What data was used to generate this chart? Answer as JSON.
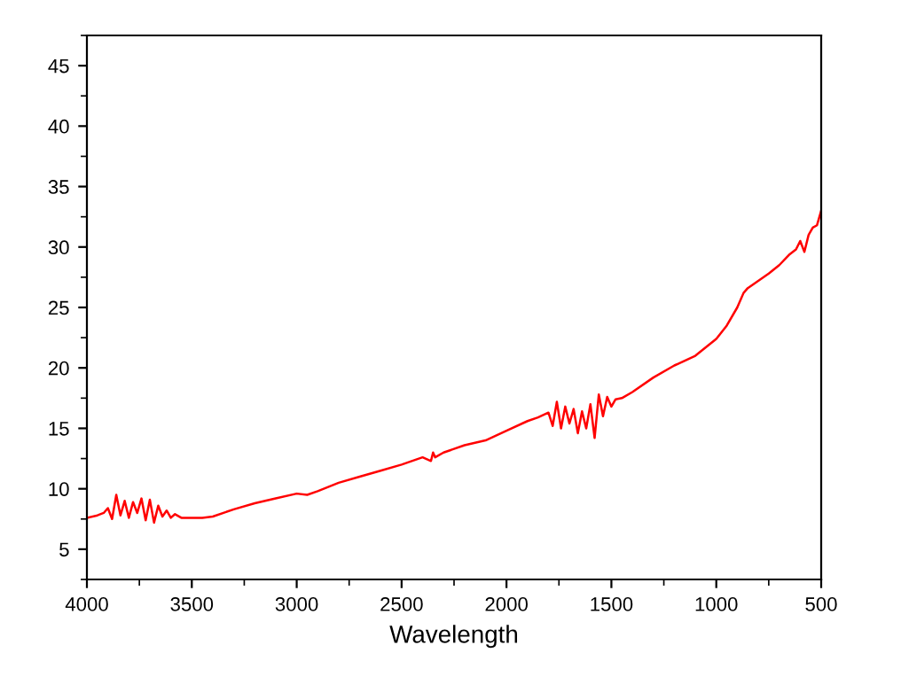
{
  "chart_data": {
    "type": "line",
    "xlabel": "Wavelength",
    "xlim": [
      4000,
      500
    ],
    "ylim": [
      2.5,
      47.5
    ],
    "xticks": [
      4000,
      3500,
      3000,
      2500,
      2000,
      1500,
      1000,
      500
    ],
    "yticks": [
      5,
      10,
      15,
      20,
      25,
      30,
      35,
      40,
      45
    ],
    "grid": false,
    "legend": false,
    "marker": "none",
    "line_style": "solid",
    "series": [
      {
        "color": "#ff0000",
        "x": [
          4000,
          3950,
          3920,
          3900,
          3880,
          3860,
          3840,
          3820,
          3800,
          3780,
          3760,
          3740,
          3720,
          3700,
          3680,
          3660,
          3640,
          3620,
          3600,
          3580,
          3550,
          3500,
          3450,
          3400,
          3300,
          3200,
          3100,
          3000,
          2950,
          2900,
          2800,
          2700,
          2600,
          2500,
          2400,
          2360,
          2350,
          2340,
          2300,
          2200,
          2100,
          2000,
          1900,
          1850,
          1800,
          1780,
          1760,
          1740,
          1720,
          1700,
          1680,
          1660,
          1640,
          1620,
          1600,
          1580,
          1560,
          1540,
          1520,
          1500,
          1480,
          1450,
          1400,
          1300,
          1200,
          1100,
          1000,
          950,
          900,
          870,
          850,
          800,
          750,
          700,
          650,
          620,
          600,
          580,
          560,
          540,
          520,
          500
        ],
        "values": [
          7.6,
          7.8,
          8.0,
          8.4,
          7.5,
          9.5,
          7.8,
          9.0,
          7.6,
          8.9,
          8.0,
          9.2,
          7.4,
          9.1,
          7.2,
          8.6,
          7.7,
          8.2,
          7.6,
          7.9,
          7.6,
          7.6,
          7.6,
          7.7,
          8.3,
          8.8,
          9.2,
          9.6,
          9.5,
          9.8,
          10.5,
          11.0,
          11.5,
          12.0,
          12.6,
          12.3,
          13.0,
          12.6,
          13.0,
          13.6,
          14.0,
          14.8,
          15.6,
          15.9,
          16.3,
          15.2,
          17.2,
          15.0,
          16.8,
          15.4,
          16.6,
          14.6,
          16.4,
          15.0,
          17.0,
          14.2,
          17.8,
          16.0,
          17.6,
          16.8,
          17.4,
          17.5,
          18.0,
          19.2,
          20.2,
          21.0,
          22.4,
          23.5,
          25.0,
          26.2,
          26.6,
          27.2,
          27.8,
          28.5,
          29.4,
          29.8,
          30.5,
          29.6,
          31.0,
          31.6,
          31.8,
          33.0
        ]
      }
    ]
  }
}
